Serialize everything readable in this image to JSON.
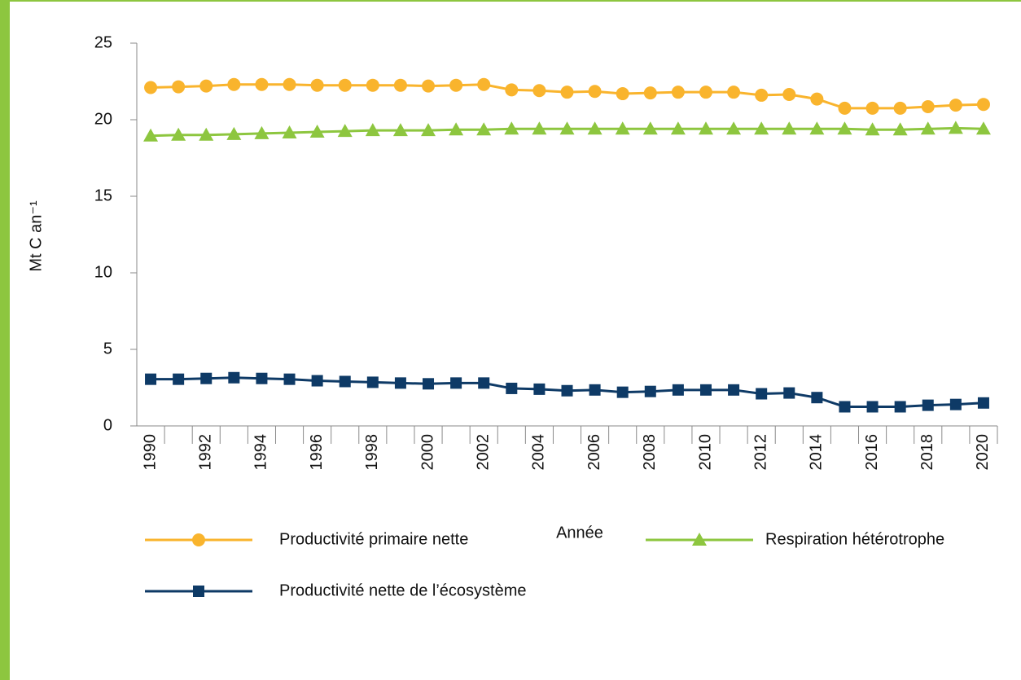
{
  "chart_data": {
    "type": "line",
    "xlabel": "Année",
    "ylabel": "Mt C an⁻¹",
    "categories": [
      "1990",
      null,
      "1992",
      null,
      "1994",
      null,
      "1996",
      null,
      "1998",
      null,
      "2000",
      null,
      "2002",
      null,
      "2004",
      null,
      "2006",
      null,
      "2008",
      null,
      "2010",
      null,
      "2012",
      null,
      "2014",
      null,
      "2016",
      null,
      "2018",
      null,
      "2020"
    ],
    "series": [
      {
        "name": "Productivité primaire nette",
        "color": "#f9b42d",
        "marker": "circle",
        "values": [
          22.1,
          22.15,
          22.2,
          22.3,
          22.3,
          22.3,
          22.25,
          22.25,
          22.25,
          22.25,
          22.2,
          22.25,
          22.3,
          21.95,
          21.9,
          21.8,
          21.85,
          21.7,
          21.75,
          21.8,
          21.8,
          21.8,
          21.6,
          21.65,
          21.35,
          20.75,
          20.75,
          20.75,
          20.85,
          20.95,
          21.0
        ]
      },
      {
        "name": "Respiration hétérotrophe",
        "color": "#8dc63f",
        "marker": "triangle",
        "values": [
          18.95,
          19.0,
          19.0,
          19.05,
          19.1,
          19.15,
          19.2,
          19.25,
          19.3,
          19.3,
          19.3,
          19.35,
          19.35,
          19.4,
          19.4,
          19.4,
          19.4,
          19.4,
          19.4,
          19.4,
          19.4,
          19.4,
          19.4,
          19.4,
          19.4,
          19.4,
          19.35,
          19.35,
          19.4,
          19.45,
          19.4
        ]
      },
      {
        "name": "Productivité nette de l’écosystème",
        "color": "#0e3a66",
        "marker": "square",
        "values": [
          3.05,
          3.05,
          3.1,
          3.15,
          3.1,
          3.05,
          2.95,
          2.9,
          2.85,
          2.8,
          2.75,
          2.8,
          2.8,
          2.45,
          2.4,
          2.3,
          2.35,
          2.2,
          2.25,
          2.35,
          2.35,
          2.35,
          2.1,
          2.15,
          1.85,
          1.25,
          1.25,
          1.25,
          1.35,
          1.4,
          1.5
        ]
      }
    ],
    "ylim": [
      0,
      25
    ],
    "yticks": [
      0,
      5,
      10,
      15,
      20,
      25
    ],
    "grid": false
  }
}
